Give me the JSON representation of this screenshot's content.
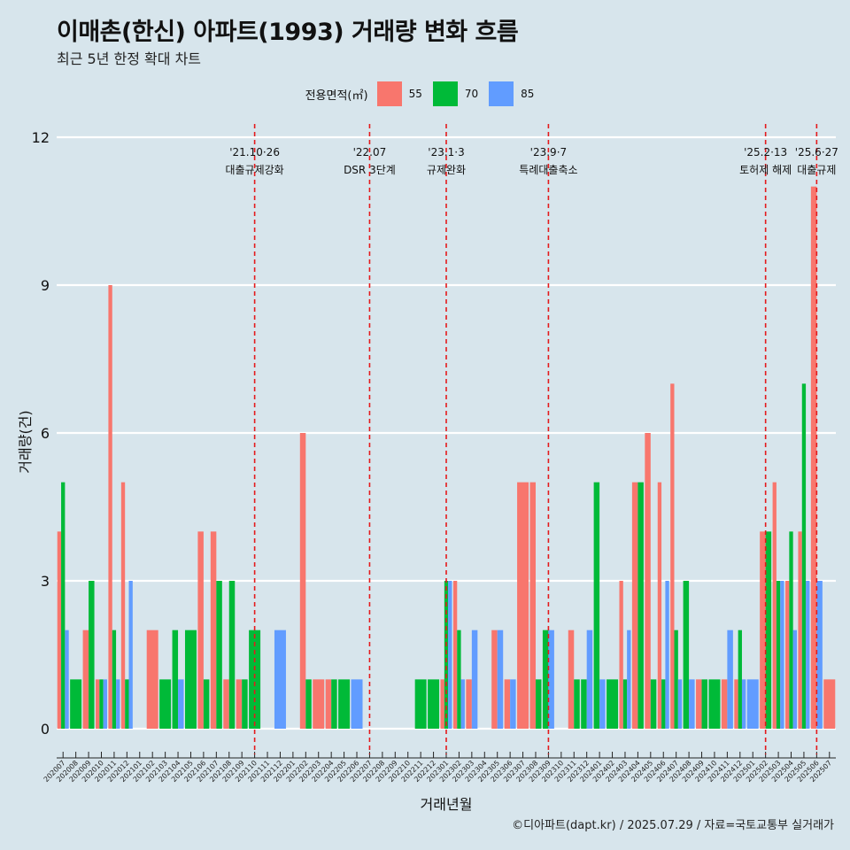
{
  "title": "이매촌(한신) 아파트(1993) 거래량 변화 흐름",
  "subtitle": "최근 5년 한정 확대 차트",
  "caption": "©디아파트(dapt.kr) / 2025.07.29 / 자료=국토교통부 실거래가",
  "legend": {
    "title": "전용면적(㎡)",
    "items": [
      {
        "label": "55",
        "color": "#f8766d"
      },
      {
        "label": "70",
        "color": "#00ba38"
      },
      {
        "label": "85",
        "color": "#619cff"
      }
    ]
  },
  "chart_data": {
    "type": "bar",
    "title": "이매촌(한신) 아파트(1993) 거래량 변화 흐름",
    "subtitle": "최근 5년 한정 확대 차트",
    "xlabel": "거래년월",
    "ylabel": "거래량(건)",
    "ylim": [
      0,
      12
    ],
    "yticks": [
      0,
      3,
      6,
      9,
      12
    ],
    "grid": "horizontal",
    "legend_position": "top",
    "categories": [
      "202007",
      "202008",
      "202009",
      "202010",
      "202011",
      "202012",
      "202101",
      "202102",
      "202103",
      "202104",
      "202105",
      "202106",
      "202107",
      "202108",
      "202109",
      "202110",
      "202111",
      "202112",
      "202201",
      "202202",
      "202203",
      "202204",
      "202205",
      "202206",
      "202207",
      "202208",
      "202209",
      "202210",
      "202211",
      "202212",
      "202301",
      "202302",
      "202303",
      "202304",
      "202305",
      "202306",
      "202307",
      "202308",
      "202309",
      "202310",
      "202311",
      "202312",
      "202401",
      "202402",
      "202403",
      "202404",
      "202405",
      "202406",
      "202407",
      "202408",
      "202409",
      "202410",
      "202411",
      "202412",
      "202501",
      "202502",
      "202503",
      "202504",
      "202505",
      "202506",
      "202507"
    ],
    "series": [
      {
        "name": "55",
        "color": "#f8766d",
        "values": [
          4,
          0,
          2,
          1,
          9,
          5,
          0,
          2,
          0,
          0,
          0,
          4,
          4,
          1,
          1,
          0,
          0,
          0,
          0,
          6,
          1,
          1,
          0,
          0,
          0,
          0,
          0,
          0,
          0,
          0,
          1,
          3,
          1,
          0,
          2,
          1,
          5,
          5,
          0,
          0,
          2,
          0,
          0,
          0,
          3,
          5,
          6,
          5,
          7,
          0,
          1,
          0,
          1,
          1,
          0,
          4,
          5,
          3,
          4,
          11,
          1
        ]
      },
      {
        "name": "70",
        "color": "#00ba38",
        "values": [
          5,
          1,
          3,
          1,
          2,
          1,
          0,
          0,
          1,
          2,
          2,
          1,
          3,
          3,
          1,
          2,
          0,
          0,
          0,
          1,
          0,
          1,
          1,
          0,
          0,
          0,
          0,
          0,
          1,
          1,
          3,
          2,
          0,
          0,
          0,
          0,
          0,
          1,
          2,
          0,
          1,
          1,
          5,
          1,
          1,
          5,
          1,
          1,
          2,
          3,
          1,
          1,
          0,
          2,
          0,
          4,
          3,
          4,
          7,
          0,
          0
        ]
      },
      {
        "name": "85",
        "color": "#619cff",
        "values": [
          2,
          0,
          0,
          1,
          1,
          3,
          0,
          0,
          0,
          1,
          0,
          0,
          0,
          0,
          0,
          0,
          0,
          2,
          0,
          0,
          0,
          0,
          0,
          1,
          0,
          0,
          0,
          0,
          0,
          0,
          3,
          1,
          2,
          0,
          2,
          1,
          0,
          0,
          2,
          0,
          0,
          2,
          1,
          0,
          2,
          0,
          0,
          3,
          1,
          1,
          0,
          0,
          2,
          1,
          1,
          0,
          3,
          2,
          3,
          3,
          0
        ]
      }
    ],
    "annotations": [
      {
        "x": "202110",
        "date": "'21.10·26",
        "label": "대출규제강화"
      },
      {
        "x": "202207",
        "date": "'22.07",
        "label": "DSR 3단계"
      },
      {
        "x": "202301",
        "date": "'23.1·3",
        "label": "규제완화"
      },
      {
        "x": "202309",
        "date": "'23.9·7",
        "label": "특례대출축소"
      },
      {
        "x": "202502",
        "date": "'25.2·13",
        "label": "토허제 해제"
      },
      {
        "x": "202506",
        "date": "'25.6·27",
        "label": "대출규제"
      }
    ]
  }
}
